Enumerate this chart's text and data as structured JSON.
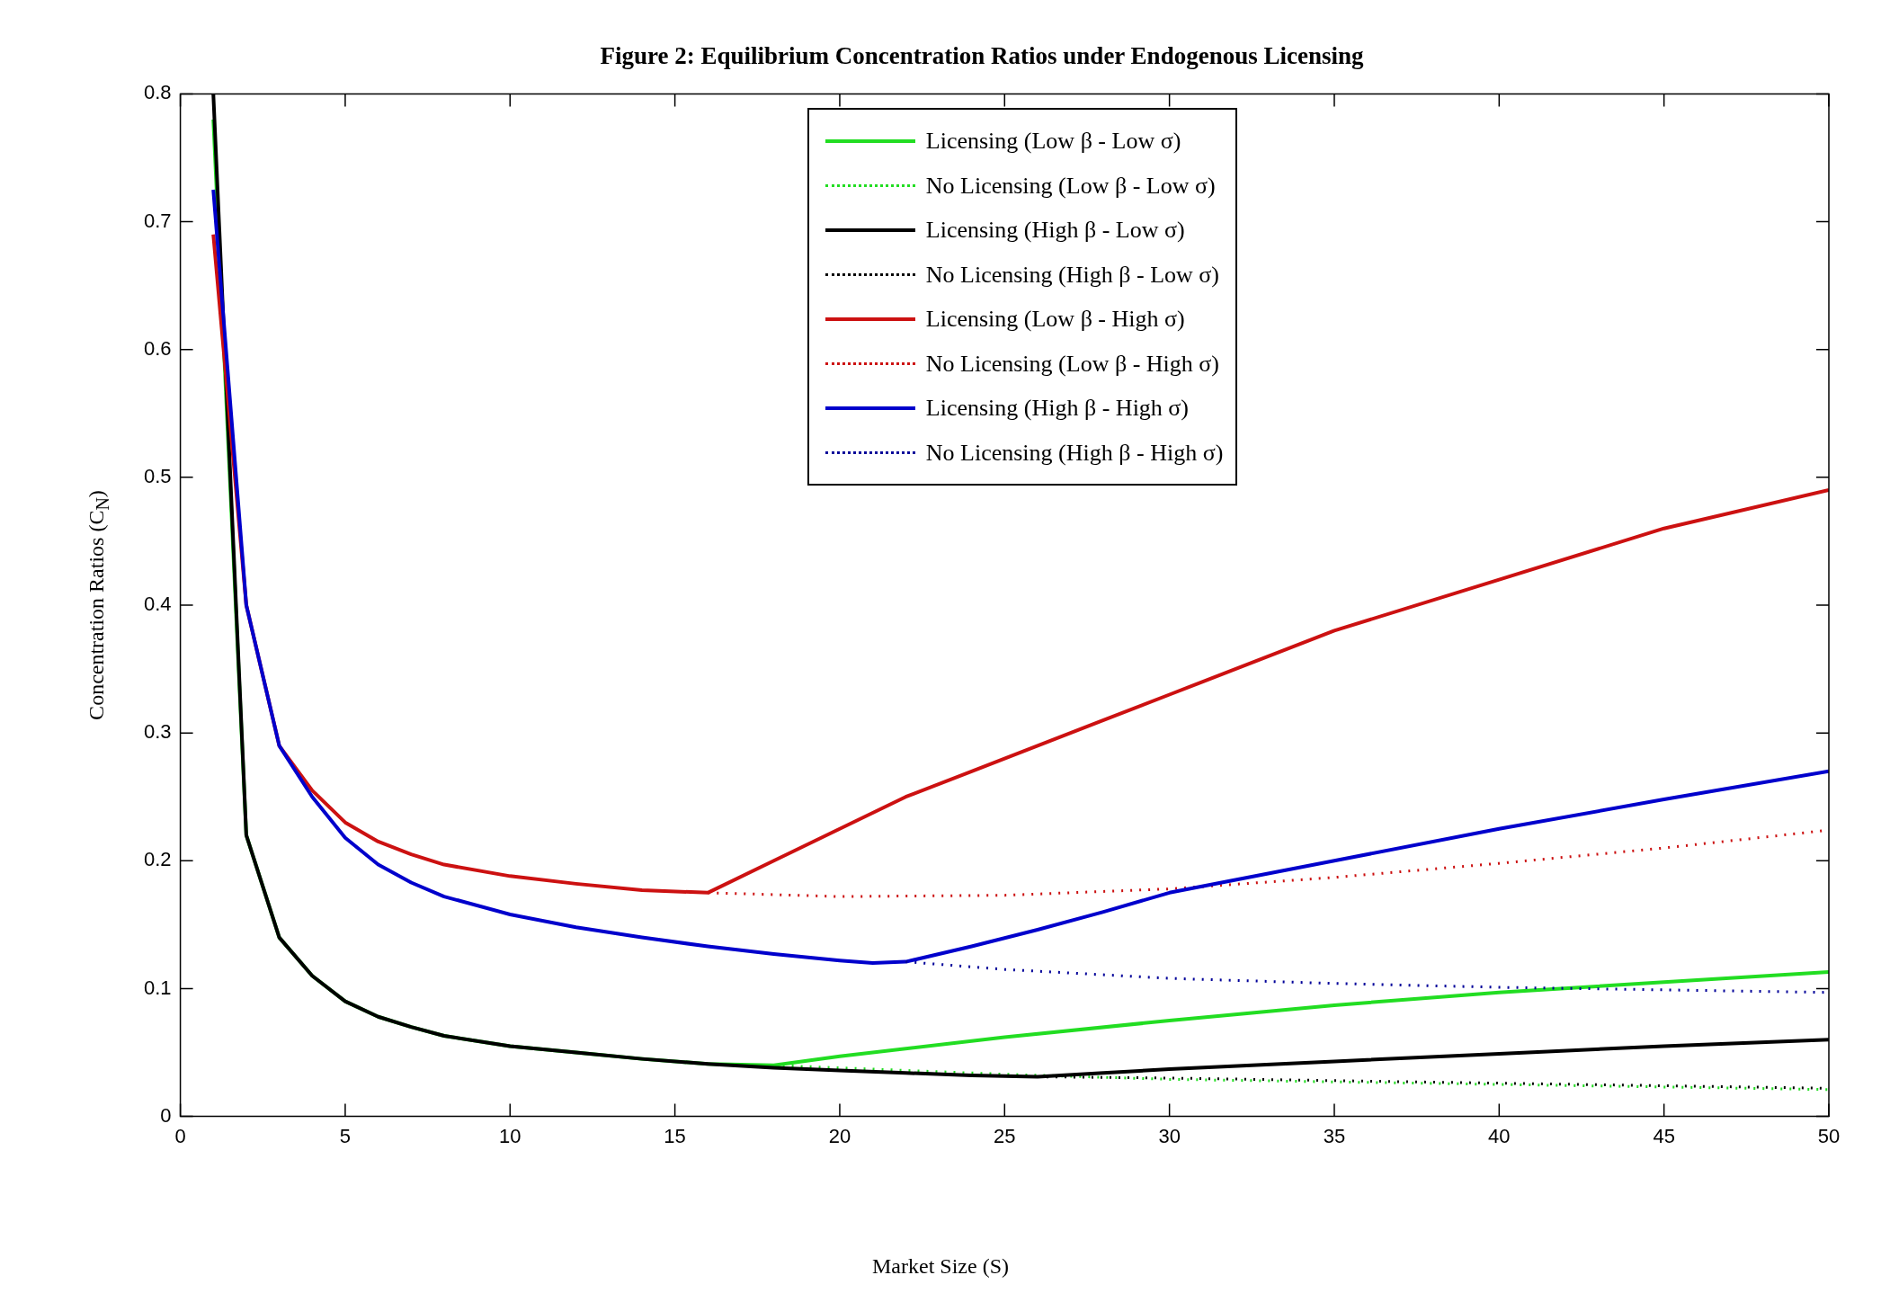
{
  "chart_data": {
    "type": "line",
    "title": "Figure 2: Equilibrium Concentration Ratios under Endogenous Licensing",
    "xlabel": "Market Size (S)",
    "ylabel": "Concentration Ratios (C$_{N}$)",
    "xlim": [
      0,
      50
    ],
    "xticks": [
      0,
      5,
      10,
      15,
      20,
      25,
      30,
      35,
      40,
      45,
      50
    ],
    "ylim": [
      0,
      0.8
    ],
    "yticks": [
      0,
      0.1,
      0.2,
      0.3,
      0.4,
      0.5,
      0.6,
      0.7,
      0.8
    ],
    "grid": false,
    "legend": "top",
    "marker": "none",
    "series": [
      {
        "name": "Licensing (Low β - Low σ)",
        "color": "#22dd22",
        "line_style": "solid",
        "x": [
          1,
          2,
          3,
          4,
          5,
          6,
          7,
          8,
          10,
          12,
          14,
          16,
          18,
          20,
          25,
          30,
          35,
          40,
          45,
          50
        ],
        "values": [
          0.78,
          0.22,
          0.14,
          0.11,
          0.09,
          0.078,
          0.07,
          0.063,
          0.055,
          0.05,
          0.045,
          0.041,
          0.04,
          0.047,
          0.062,
          0.075,
          0.087,
          0.097,
          0.105,
          0.113
        ]
      },
      {
        "name": "No Licensing (Low β - Low σ)",
        "color": "#22dd22",
        "line_style": "dotted",
        "x": [
          18,
          20,
          25,
          30,
          35,
          40,
          45,
          50
        ],
        "values": [
          0.04,
          0.038,
          0.033,
          0.029,
          0.027,
          0.025,
          0.023,
          0.021
        ]
      },
      {
        "name": "Licensing (High β - Low σ)",
        "color": "#000000",
        "line_style": "solid",
        "x": [
          1,
          2,
          3,
          4,
          5,
          6,
          7,
          8,
          10,
          12,
          14,
          16,
          18,
          20,
          22,
          24,
          26,
          28,
          30,
          35,
          40,
          45,
          50
        ],
        "values": [
          0.8,
          0.22,
          0.14,
          0.11,
          0.09,
          0.078,
          0.07,
          0.063,
          0.055,
          0.05,
          0.045,
          0.041,
          0.038,
          0.036,
          0.034,
          0.032,
          0.031,
          0.034,
          0.037,
          0.043,
          0.049,
          0.055,
          0.06
        ]
      },
      {
        "name": "No Licensing (High β - Low σ)",
        "color": "#000000",
        "line_style": "dotted",
        "x": [
          26,
          30,
          35,
          40,
          45,
          50
        ],
        "values": [
          0.031,
          0.03,
          0.028,
          0.026,
          0.024,
          0.022
        ]
      },
      {
        "name": "Licensing (Low β - High σ)",
        "color": "#cc1111",
        "line_style": "solid",
        "x": [
          1,
          2,
          3,
          4,
          5,
          6,
          7,
          8,
          10,
          12,
          14,
          16,
          18,
          20,
          22,
          24,
          26,
          28,
          30,
          35,
          40,
          45,
          50
        ],
        "values": [
          0.69,
          0.4,
          0.29,
          0.255,
          0.23,
          0.215,
          0.205,
          0.197,
          0.188,
          0.182,
          0.177,
          0.175,
          0.2,
          0.225,
          0.25,
          0.27,
          0.29,
          0.31,
          0.33,
          0.38,
          0.42,
          0.46,
          0.49
        ]
      },
      {
        "name": "No Licensing (Low β - High σ)",
        "color": "#cc1111",
        "line_style": "dotted",
        "x": [
          16,
          20,
          25,
          30,
          35,
          40,
          45,
          50
        ],
        "values": [
          0.175,
          0.172,
          0.173,
          0.178,
          0.187,
          0.198,
          0.21,
          0.224
        ]
      },
      {
        "name": "Licensing (High β - High σ)",
        "color": "#0000cc",
        "line_style": "solid",
        "x": [
          1,
          2,
          3,
          4,
          5,
          6,
          7,
          8,
          10,
          12,
          14,
          16,
          18,
          20,
          21,
          22,
          24,
          26,
          28,
          30,
          35,
          40,
          45,
          50
        ],
        "values": [
          0.725,
          0.4,
          0.29,
          0.25,
          0.218,
          0.197,
          0.183,
          0.172,
          0.158,
          0.148,
          0.14,
          0.133,
          0.127,
          0.122,
          0.12,
          0.121,
          0.133,
          0.146,
          0.16,
          0.175,
          0.2,
          0.225,
          0.248,
          0.27
        ]
      },
      {
        "name": "No Licensing (High β - High σ)",
        "color": "#000099",
        "line_style": "dotted",
        "x": [
          22,
          25,
          30,
          35,
          40,
          45,
          50
        ],
        "values": [
          0.121,
          0.115,
          0.108,
          0.104,
          0.101,
          0.099,
          0.097
        ]
      }
    ]
  }
}
